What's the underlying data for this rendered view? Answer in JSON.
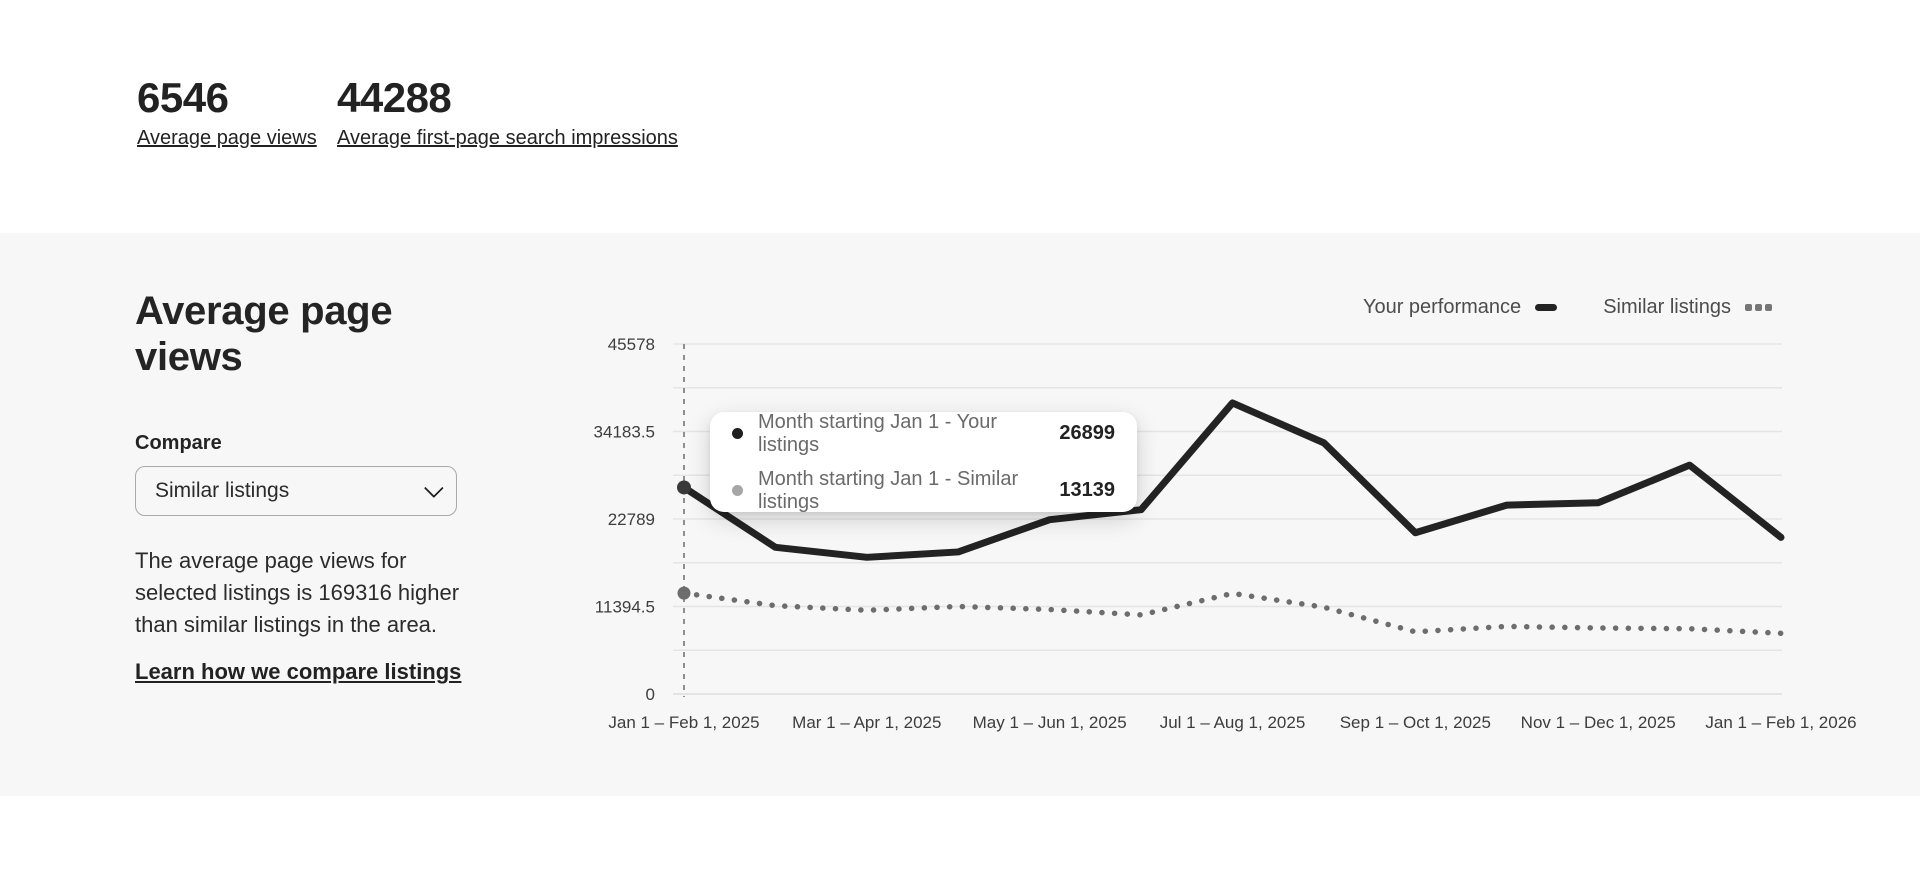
{
  "colors": {
    "page_background": "#ffffff",
    "panel_background": "#f7f7f7",
    "text_dark": "#222222",
    "text_secondary": "#6a6a6a",
    "gridline": "#e5e5e5",
    "your_performance_line": "#232323",
    "similar_listings_line": "#6d6d6d",
    "tooltip_dot_your": "#1f1f1f",
    "tooltip_dot_similar": "#a6a6a6"
  },
  "stats": [
    {
      "value": "6546",
      "label": "Average page views"
    },
    {
      "value": "44288",
      "label": "Average first-page search impressions"
    }
  ],
  "panel": {
    "title": "Average page views",
    "compare_label": "Compare",
    "compare_value": "Similar listings",
    "description": "The average page views for selected listings is 169316 higher than similar listings in the area.",
    "link": "Learn how we compare listings"
  },
  "legend": [
    {
      "label": "Your performance",
      "style": "solid"
    },
    {
      "label": "Similar listings",
      "style": "dotted"
    }
  ],
  "tooltip": {
    "rows": [
      {
        "label": "Month starting Jan 1 - Your listings",
        "value": "26899"
      },
      {
        "label": "Month starting Jan 1 - Similar listings",
        "value": "13139"
      }
    ]
  },
  "chart_data": {
    "type": "line",
    "x": [
      "Jan 2025",
      "Feb 2025",
      "Mar 2025",
      "Apr 2025",
      "May 2025",
      "Jun 2025",
      "Jul 2025",
      "Aug 2025",
      "Sep 2025",
      "Oct 2025",
      "Nov 2025",
      "Dec 2025",
      "Jan 2026"
    ],
    "series": [
      {
        "name": "Your performance",
        "values": [
          26899,
          19100,
          17800,
          18500,
          22700,
          24000,
          37900,
          32700,
          21000,
          24600,
          24900,
          29800,
          20400
        ]
      },
      {
        "name": "Similar listings",
        "values": [
          13139,
          11500,
          10900,
          11400,
          11000,
          10300,
          13100,
          11300,
          8100,
          8800,
          8600,
          8500,
          7900
        ]
      }
    ],
    "highlight_index": 0,
    "highlight_values": {
      "your": 26899,
      "similar": 13139
    },
    "y_tick_labels": [
      "45578",
      "34183.5",
      "22789",
      "11394.5",
      "0"
    ],
    "y_tick_values": [
      45578,
      34183.5,
      22789,
      11394.5,
      0
    ],
    "x_tick_labels": [
      "Jan 1 – Feb 1, 2025",
      "Mar 1 – Apr 1, 2025",
      "May 1 – Jun 1, 2025",
      "Jul 1 – Aug 1, 2025",
      "Sep 1 – Oct 1, 2025",
      "Nov 1 – Dec 1, 2025",
      "Jan 1 – Feb 1, 2026"
    ],
    "ylim": [
      0,
      45578
    ],
    "grid": true,
    "legend_position": "top-right",
    "title": "Average page views"
  }
}
